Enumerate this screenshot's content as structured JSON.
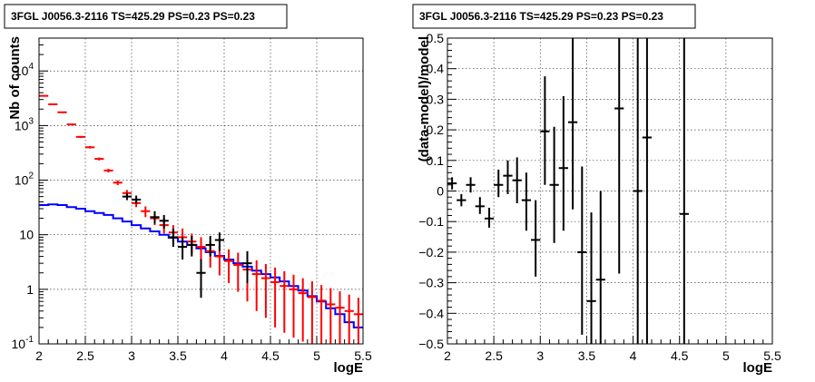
{
  "chart_data": [
    {
      "type": "line",
      "title": "3FGL J0056.3-2116 TS=425.29 PS=0.23 PS=0.23",
      "xlabel": "logE",
      "ylabel": "Nb of counts",
      "xlim": [
        2,
        5.5
      ],
      "ylim": [
        0.1,
        40000
      ],
      "yscale": "log",
      "grid": true,
      "x_tick_labels": [
        "2",
        "2.5",
        "3",
        "3.5",
        "4",
        "4.5",
        "5",
        "5.5"
      ],
      "y_tick_labels": [
        {
          "base": "10",
          "exp": "-1"
        },
        {
          "base": "1",
          "exp": ""
        },
        {
          "base": "10",
          "exp": ""
        },
        {
          "base": "10",
          "exp": "2"
        },
        {
          "base": "10",
          "exp": "3"
        },
        {
          "base": "10",
          "exp": "4"
        }
      ],
      "series": [
        {
          "color": "#ff0000",
          "points": [
            {
              "x": 2.05,
              "y": 3500,
              "lo": 3440,
              "hi": 3560
            },
            {
              "x": 2.15,
              "y": 2450,
              "lo": 2400,
              "hi": 2500
            },
            {
              "x": 2.25,
              "y": 1750,
              "lo": 1710,
              "hi": 1790
            },
            {
              "x": 2.35,
              "y": 1050,
              "lo": 1020,
              "hi": 1080
            },
            {
              "x": 2.45,
              "y": 620,
              "lo": 595,
              "hi": 645
            },
            {
              "x": 2.55,
              "y": 400,
              "lo": 380,
              "hi": 420
            },
            {
              "x": 2.65,
              "y": 245,
              "lo": 230,
              "hi": 260
            },
            {
              "x": 2.75,
              "y": 150,
              "lo": 138,
              "hi": 162
            },
            {
              "x": 2.85,
              "y": 90,
              "lo": 81,
              "hi": 99
            },
            {
              "x": 2.95,
              "y": 58,
              "lo": 50,
              "hi": 66
            },
            {
              "x": 3.05,
              "y": 38,
              "lo": 32,
              "hi": 45
            },
            {
              "x": 3.15,
              "y": 27,
              "lo": 21,
              "hi": 33
            },
            {
              "x": 3.25,
              "y": 20,
              "lo": 15,
              "hi": 26
            },
            {
              "x": 3.35,
              "y": 15,
              "lo": 10.5,
              "hi": 20
            },
            {
              "x": 3.45,
              "y": 11,
              "lo": 7.5,
              "hi": 15
            },
            {
              "x": 3.55,
              "y": 9,
              "lo": 6,
              "hi": 13
            },
            {
              "x": 3.65,
              "y": 7.5,
              "lo": 4.5,
              "hi": 10.5
            },
            {
              "x": 3.75,
              "y": 6,
              "lo": 3.5,
              "hi": 9
            },
            {
              "x": 3.85,
              "y": 5,
              "lo": 2.5,
              "hi": 7.5
            },
            {
              "x": 3.95,
              "y": 4,
              "lo": 1.8,
              "hi": 6.2
            },
            {
              "x": 4.05,
              "y": 3.3,
              "lo": 1.3,
              "hi": 5.4
            },
            {
              "x": 4.15,
              "y": 2.8,
              "lo": 0.9,
              "hi": 4.7
            },
            {
              "x": 4.25,
              "y": 2.3,
              "lo": 0.6,
              "hi": 4
            },
            {
              "x": 4.35,
              "y": 1.9,
              "lo": 0.4,
              "hi": 3.4
            },
            {
              "x": 4.45,
              "y": 1.6,
              "lo": 0.3,
              "hi": 2.9
            },
            {
              "x": 4.55,
              "y": 1.35,
              "lo": 0.2,
              "hi": 2.5
            },
            {
              "x": 4.65,
              "y": 1.15,
              "lo": 0.16,
              "hi": 2.15
            },
            {
              "x": 4.75,
              "y": 1.0,
              "lo": 0.13,
              "hi": 1.85
            },
            {
              "x": 4.85,
              "y": 0.85,
              "lo": 0.11,
              "hi": 1.6
            },
            {
              "x": 4.95,
              "y": 0.72,
              "lo": 0.1,
              "hi": 1.4
            },
            {
              "x": 5.05,
              "y": 0.62,
              "lo": 0.1,
              "hi": 1.2
            },
            {
              "x": 5.15,
              "y": 0.53,
              "lo": 0.1,
              "hi": 1.05
            },
            {
              "x": 5.25,
              "y": 0.46,
              "lo": 0.1,
              "hi": 0.92
            },
            {
              "x": 5.35,
              "y": 0.4,
              "lo": 0.1,
              "hi": 0.8
            },
            {
              "x": 5.45,
              "y": 0.35,
              "lo": 0.1,
              "hi": 0.7
            }
          ]
        },
        {
          "color": "#000000",
          "points": [
            {
              "x": 2.95,
              "y": 50,
              "lo": 43,
              "hi": 58
            },
            {
              "x": 3.05,
              "y": 44,
              "lo": 37,
              "hi": 52
            },
            {
              "x": 3.25,
              "y": 21,
              "lo": 16,
              "hi": 27
            },
            {
              "x": 3.35,
              "y": 18,
              "lo": 13,
              "hi": 23
            },
            {
              "x": 3.45,
              "y": 9,
              "lo": 6,
              "hi": 13
            },
            {
              "x": 3.55,
              "y": 6,
              "lo": 3.5,
              "hi": 9
            },
            {
              "x": 3.65,
              "y": 6.5,
              "lo": 4,
              "hi": 9.5
            },
            {
              "x": 3.75,
              "y": 2,
              "lo": 0.7,
              "hi": 3.6
            },
            {
              "x": 3.85,
              "y": 6.5,
              "lo": 4,
              "hi": 9.5
            },
            {
              "x": 3.95,
              "y": 8,
              "lo": 5,
              "hi": 11
            },
            {
              "x": 4.25,
              "y": 3,
              "lo": 1.3,
              "hi": 5
            }
          ]
        }
      ],
      "model": {
        "color": "#0000ff",
        "bin_edges": [
          2.0,
          2.1,
          2.2,
          2.3,
          2.4,
          2.5,
          2.6,
          2.7,
          2.8,
          2.9,
          3.0,
          3.1,
          3.2,
          3.3,
          3.4,
          3.5,
          3.6,
          3.7,
          3.8,
          3.9,
          4.0,
          4.1,
          4.2,
          4.3,
          4.4,
          4.5,
          4.6,
          4.7,
          4.8,
          4.9,
          5.0,
          5.1,
          5.2,
          5.3,
          5.4,
          5.5
        ],
        "values": [
          35,
          36,
          35,
          32,
          30,
          27,
          25,
          23,
          20,
          17.5,
          15,
          13,
          11.5,
          10,
          8.8,
          7.5,
          6.5,
          5.6,
          4.8,
          4.1,
          3.5,
          3.0,
          2.6,
          2.2,
          1.9,
          1.65,
          1.4,
          1.15,
          0.95,
          0.75,
          0.6,
          0.45,
          0.35,
          0.25,
          0.2
        ]
      }
    },
    {
      "type": "scatter",
      "title": "3FGL J0056.3-2116 TS=425.29 PS=0.23 PS=0.23",
      "xlabel": "logE",
      "ylabel": "(data-model)/model",
      "xlim": [
        2,
        5.5
      ],
      "ylim": [
        -0.5,
        0.5
      ],
      "grid": true,
      "x_tick_labels": [
        "2",
        "2.5",
        "3",
        "3.5",
        "4",
        "4.5",
        "5",
        "5.5"
      ],
      "y_tick_labels": [
        "−0.5",
        "−0.4",
        "−0.3",
        "−0.2",
        "−0.1",
        "0",
        "0.1",
        "0.2",
        "0.3",
        "0.4",
        "0.5"
      ],
      "series": [
        {
          "color": "#000000",
          "points": [
            {
              "x": 2.05,
              "y": 0.025,
              "lo": 0.005,
              "hi": 0.045
            },
            {
              "x": 2.15,
              "y": -0.03,
              "lo": -0.05,
              "hi": -0.01
            },
            {
              "x": 2.25,
              "y": 0.02,
              "lo": -0.005,
              "hi": 0.045
            },
            {
              "x": 2.35,
              "y": -0.05,
              "lo": -0.075,
              "hi": -0.02
            },
            {
              "x": 2.45,
              "y": -0.09,
              "lo": -0.12,
              "hi": -0.055
            },
            {
              "x": 2.55,
              "y": 0.02,
              "lo": -0.02,
              "hi": 0.07
            },
            {
              "x": 2.65,
              "y": 0.05,
              "lo": -0.01,
              "hi": 0.1
            },
            {
              "x": 2.75,
              "y": 0.035,
              "lo": -0.04,
              "hi": 0.11
            },
            {
              "x": 2.85,
              "y": -0.03,
              "lo": -0.13,
              "hi": 0.06
            },
            {
              "x": 2.95,
              "y": -0.16,
              "lo": -0.28,
              "hi": -0.03
            },
            {
              "x": 3.05,
              "y": 0.195,
              "lo": 0.02,
              "hi": 0.375
            },
            {
              "x": 3.15,
              "y": 0.02,
              "lo": -0.17,
              "hi": 0.21
            },
            {
              "x": 3.25,
              "y": 0.075,
              "lo": -0.13,
              "hi": 0.31
            },
            {
              "x": 3.35,
              "y": 0.225,
              "lo": -0.06,
              "hi": 0.5
            },
            {
              "x": 3.45,
              "y": -0.2,
              "lo": -0.47,
              "hi": 0.08
            },
            {
              "x": 3.55,
              "y": -0.36,
              "lo": -0.5,
              "hi": -0.07
            },
            {
              "x": 3.65,
              "y": -0.29,
              "lo": -0.5,
              "hi": 0.0
            },
            {
              "x": 3.85,
              "y": 0.27,
              "lo": -0.27,
              "hi": 0.5
            },
            {
              "x": 4.05,
              "y": 0.0,
              "lo": -0.5,
              "hi": 0.5
            },
            {
              "x": 4.15,
              "y": 0.175,
              "lo": -0.5,
              "hi": 0.5
            },
            {
              "x": 4.55,
              "y": -0.075,
              "lo": -0.5,
              "hi": 0.5
            }
          ]
        }
      ]
    }
  ]
}
